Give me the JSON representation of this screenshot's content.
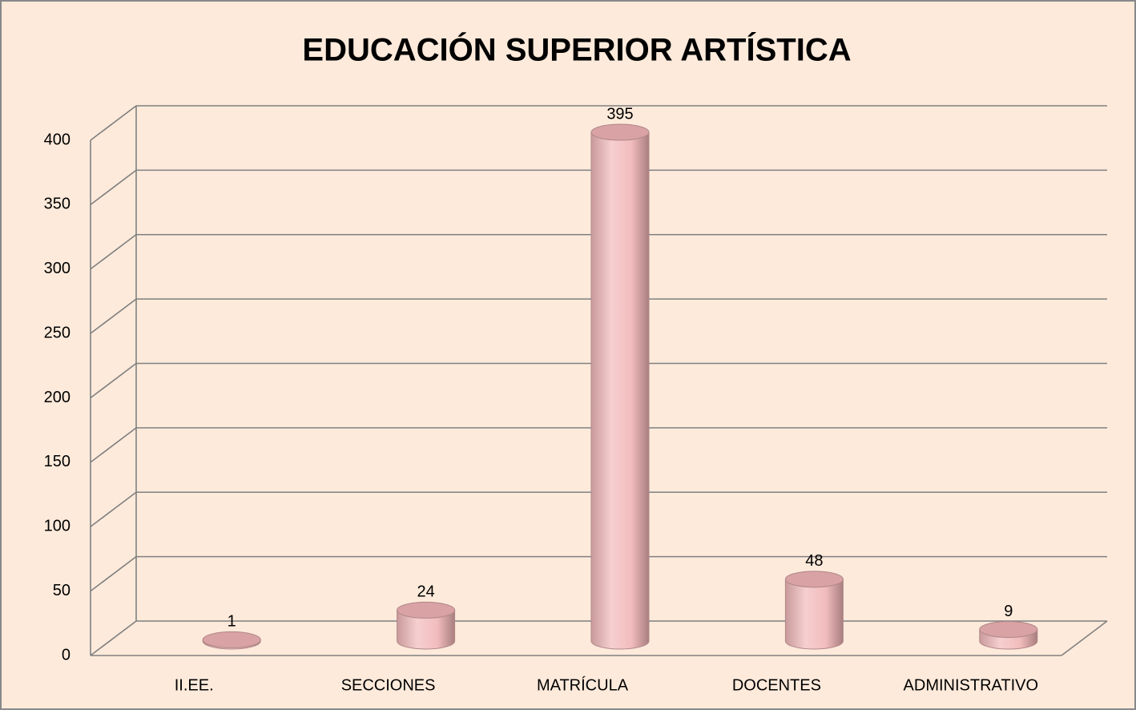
{
  "chart_data": {
    "type": "bar3d",
    "title": "EDUCACIÓN SUPERIOR ARTÍSTICA",
    "categories": [
      "II.EE.",
      "SECCIONES",
      "MATRÍCULA",
      "DOCENTES",
      "ADMINISTRATIVO"
    ],
    "values": [
      1,
      24,
      395,
      48,
      9
    ],
    "color": "#f2bcbd",
    "ylim": [
      0,
      400
    ],
    "yticks": [
      0,
      50,
      100,
      150,
      200,
      250,
      300,
      350,
      400
    ],
    "grid": true
  }
}
